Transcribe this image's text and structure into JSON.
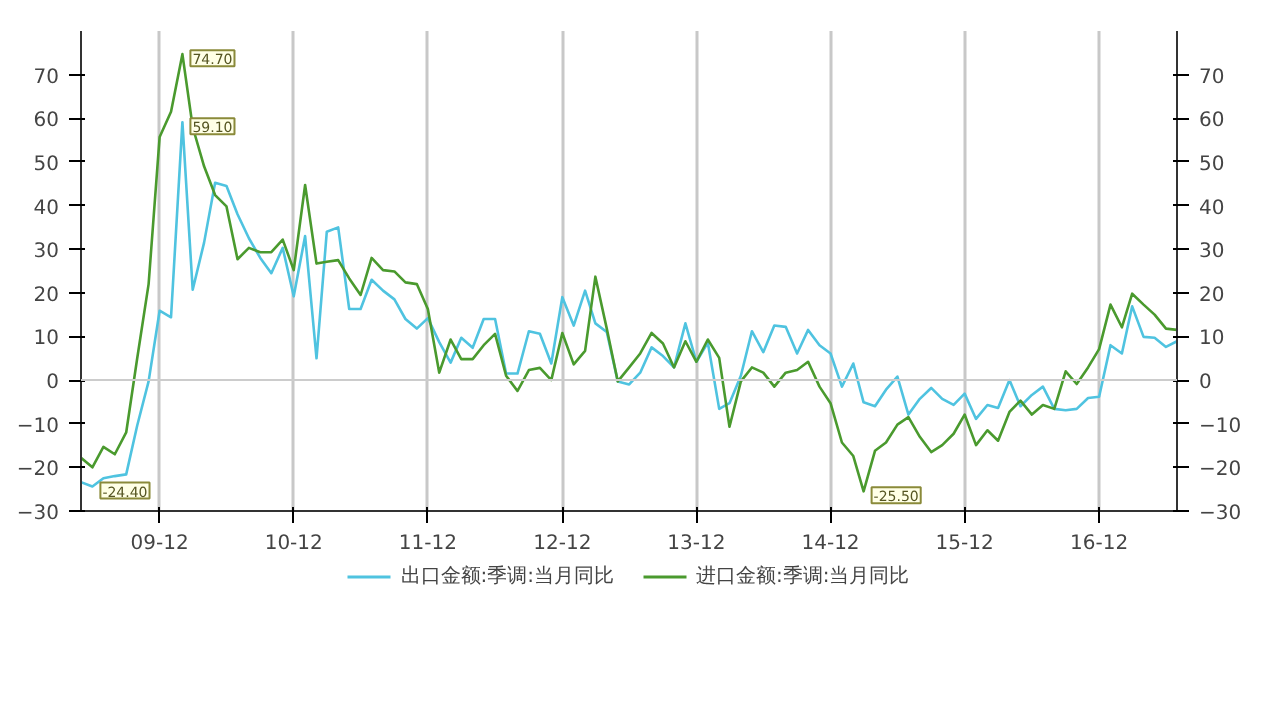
{
  "chart_data": {
    "type": "line",
    "x": [
      "2009-05",
      "2009-06",
      "2009-07",
      "2009-08",
      "2009-09",
      "2009-10",
      "2009-11",
      "2009-12",
      "2010-01",
      "2010-02",
      "2010-03",
      "2010-04",
      "2010-05",
      "2010-06",
      "2010-07",
      "2010-08",
      "2010-09",
      "2010-10",
      "2010-11",
      "2010-12",
      "2011-01",
      "2011-02",
      "2011-03",
      "2011-04",
      "2011-05",
      "2011-06",
      "2011-07",
      "2011-08",
      "2011-09",
      "2011-10",
      "2011-11",
      "2011-12",
      "2012-01",
      "2012-02",
      "2012-03",
      "2012-04",
      "2012-05",
      "2012-06",
      "2012-07",
      "2012-08",
      "2012-09",
      "2012-10",
      "2012-11",
      "2012-12",
      "2013-01",
      "2013-02",
      "2013-03",
      "2013-04",
      "2013-05",
      "2013-06",
      "2013-07",
      "2013-08",
      "2013-09",
      "2013-10",
      "2013-11",
      "2013-12",
      "2014-01",
      "2014-02",
      "2014-03",
      "2014-04",
      "2014-05",
      "2014-06",
      "2014-07",
      "2014-08",
      "2014-09",
      "2014-10",
      "2014-11",
      "2014-12",
      "2015-01",
      "2015-02",
      "2015-03",
      "2015-04",
      "2015-05",
      "2015-06",
      "2015-07",
      "2015-08",
      "2015-09",
      "2015-10",
      "2015-11",
      "2015-12",
      "2016-01",
      "2016-02",
      "2016-03",
      "2016-04",
      "2016-05",
      "2016-06",
      "2016-07",
      "2016-08",
      "2016-09",
      "2016-10",
      "2016-11",
      "2016-12",
      "2017-01",
      "2017-02",
      "2017-03",
      "2017-04",
      "2017-05",
      "2017-06",
      "2017-07"
    ],
    "series": [
      {
        "name": "出口金额:季调:当月同比",
        "color": "#4fc3e0",
        "values": [
          -23.4,
          -24.4,
          -22.5,
          -22,
          -21.6,
          -10.4,
          -0.3,
          15.9,
          14.4,
          59.1,
          20.7,
          31.5,
          45.2,
          44.5,
          38,
          32.5,
          28,
          24.5,
          30.3,
          19.2,
          33,
          5,
          34,
          35,
          16.3,
          16.3,
          23,
          20.5,
          18.5,
          14,
          11.8,
          14.2,
          8.7,
          4,
          9.7,
          7.4,
          14,
          14,
          1.5,
          1.5,
          11.2,
          10.6,
          3.8,
          19,
          12.5,
          20.5,
          13,
          11,
          -0.3,
          -1,
          1.7,
          7.5,
          5.5,
          2.9,
          13,
          4.2,
          8.6,
          -6.6,
          -5.3,
          1,
          11.2,
          6.4,
          12.5,
          12.2,
          6.1,
          11.5,
          8,
          6.1,
          -1.5,
          3.8,
          -5.1,
          -6,
          -2.2,
          0.8,
          -7.9,
          -4.3,
          -1.8,
          -4.3,
          -5.7,
          -3.1,
          -8.9,
          -5.7,
          -6.4,
          0,
          -6,
          -3.4,
          -1.5,
          -6.6,
          -6.9,
          -6.6,
          -4.1,
          -3.8,
          8,
          6.1,
          16.9,
          9.9,
          9.7,
          7.6,
          8.9
        ]
      },
      {
        "name": "进口金额:季调:当月同比",
        "color": "#4a9a2e",
        "values": [
          -17.8,
          -20,
          -15.3,
          -17,
          -12,
          5,
          22,
          55.7,
          61.5,
          74.7,
          58,
          49,
          42.4,
          39.8,
          27.7,
          30.3,
          29.3,
          29.3,
          32.2,
          25.2,
          44.7,
          26.7,
          27.1,
          27.5,
          23.3,
          19.5,
          28,
          25.2,
          24.9,
          22.4,
          22,
          16.3,
          1.7,
          9.3,
          4.8,
          4.8,
          8,
          10.6,
          1,
          -2.5,
          2.3,
          2.8,
          0,
          10.8,
          3.6,
          6.7,
          23.7,
          11.8,
          -0.3,
          2.9,
          6.1,
          10.8,
          8.4,
          2.9,
          8.9,
          4.2,
          9.3,
          5.1,
          -10.7,
          -0.3,
          2.9,
          1.7,
          -1.5,
          1.7,
          2.3,
          4.2,
          -1.5,
          -5.3,
          -14.3,
          -17.4,
          -25.5,
          -16.2,
          -14.3,
          -10.2,
          -8.5,
          -13,
          -16.5,
          -14.9,
          -12.3,
          -7.9,
          -14.9,
          -11.5,
          -13.9,
          -7.3,
          -4.7,
          -7.9,
          -5.7,
          -6.6,
          2,
          -0.9,
          2.9,
          7.1,
          17.3,
          12.1,
          19.8,
          17.3,
          15,
          11.8,
          11.5
        ]
      }
    ],
    "xlim": [
      "2009-05",
      "2017-07"
    ],
    "xticks": [
      {
        "value": "2009-12",
        "label": "09-12"
      },
      {
        "value": "2010-12",
        "label": "10-12"
      },
      {
        "value": "2011-12",
        "label": "11-12"
      },
      {
        "value": "2012-12",
        "label": "12-12"
      },
      {
        "value": "2013-12",
        "label": "13-12"
      },
      {
        "value": "2014-12",
        "label": "14-12"
      },
      {
        "value": "2015-12",
        "label": "15-12"
      },
      {
        "value": "2016-12",
        "label": "16-12"
      }
    ],
    "ylim": [
      -30,
      80
    ],
    "yticks": [
      -30,
      -20,
      -10,
      0,
      10,
      20,
      30,
      40,
      50,
      60,
      70
    ],
    "y2lim": [
      -30,
      80
    ],
    "y2ticks": [
      -30,
      -20,
      -10,
      0,
      10,
      20,
      30,
      40,
      50,
      60,
      70
    ],
    "ref_lines": [
      {
        "axis": "y",
        "value": 0,
        "color": "#cccccc"
      }
    ],
    "annotations": [
      {
        "text": "74.70",
        "x": "2010-02",
        "y": 74.7
      },
      {
        "text": "59.10",
        "x": "2010-02",
        "y": 59.1
      },
      {
        "text": "-24.40",
        "x": "2009-06",
        "y": -24.4
      },
      {
        "text": "-25.50",
        "x": "2015-03",
        "y": -25.5
      }
    ],
    "grid": "x",
    "legend": "bottom",
    "marker": "none",
    "line_style": "solid"
  }
}
